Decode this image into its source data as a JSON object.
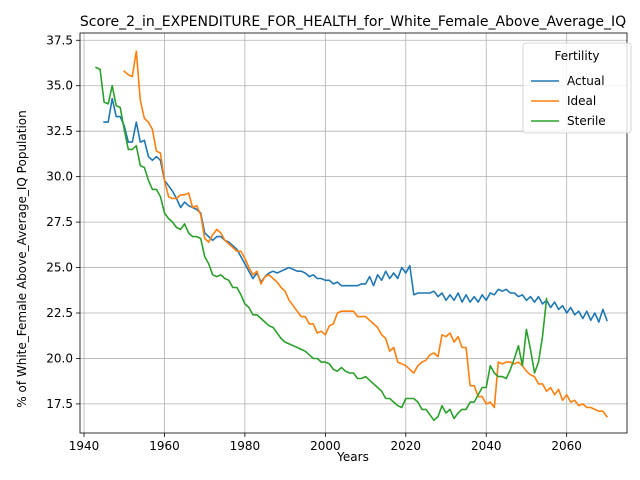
{
  "chart_data": {
    "type": "line",
    "title": "Score_2_in_EXPENDITURE_FOR_HEALTH_for_White_Female_Above_Average_IQ",
    "xlabel": "Years",
    "ylabel": "% of White_Female Above_Average_IQ Population",
    "xlim": [
      1939,
      2075
    ],
    "ylim": [
      15.9,
      37.9
    ],
    "grid": true,
    "xticks": [
      1940,
      1960,
      1980,
      2000,
      2020,
      2040,
      2060
    ],
    "yticks": [
      17.5,
      20.0,
      22.5,
      25.0,
      27.5,
      30.0,
      32.5,
      35.0,
      37.5
    ],
    "ytick_labels": [
      "17.5",
      "20.0",
      "22.5",
      "25.0",
      "27.5",
      "30.0",
      "32.5",
      "35.0",
      "37.5"
    ],
    "legend": {
      "title": "Fertility",
      "position": "top-right"
    },
    "series": [
      {
        "name": "Actual",
        "color": "#1f77b4",
        "x": [
          1945,
          1946,
          1947,
          1948,
          1949,
          1950,
          1951,
          1952,
          1953,
          1954,
          1955,
          1956,
          1957,
          1958,
          1959,
          1960,
          1961,
          1962,
          1963,
          1964,
          1965,
          1966,
          1967,
          1968,
          1969,
          1970,
          1971,
          1972,
          1973,
          1974,
          1975,
          1976,
          1977,
          1978,
          1979,
          1980,
          1981,
          1982,
          1983,
          1984,
          1985,
          1986,
          1987,
          1988,
          1989,
          1990,
          1991,
          1992,
          1993,
          1994,
          1995,
          1996,
          1997,
          1998,
          1999,
          2000,
          2001,
          2002,
          2003,
          2004,
          2005,
          2006,
          2007,
          2008,
          2009,
          2010,
          2011,
          2012,
          2013,
          2014,
          2015,
          2016,
          2017,
          2018,
          2019,
          2020,
          2021,
          2022,
          2023,
          2024,
          2025,
          2026,
          2027,
          2028,
          2029,
          2030,
          2031,
          2032,
          2033,
          2034,
          2035,
          2036,
          2037,
          2038,
          2039,
          2040,
          2041,
          2042,
          2043,
          2044,
          2045,
          2046,
          2047,
          2048,
          2049,
          2050,
          2051,
          2052,
          2053,
          2054,
          2055,
          2056,
          2057,
          2058,
          2059,
          2060,
          2061,
          2062,
          2063,
          2064,
          2065,
          2066,
          2067,
          2068,
          2069,
          2070
        ],
        "values": [
          33.0,
          33.0,
          34.3,
          33.3,
          33.3,
          32.8,
          31.9,
          31.9,
          33.0,
          31.9,
          32.0,
          31.1,
          30.9,
          31.1,
          30.9,
          29.8,
          29.5,
          29.2,
          28.8,
          28.3,
          28.6,
          28.4,
          28.3,
          28.2,
          28.0,
          26.9,
          26.7,
          26.5,
          26.7,
          26.7,
          26.5,
          26.4,
          26.2,
          26.0,
          25.6,
          25.2,
          24.8,
          24.4,
          24.7,
          24.2,
          24.5,
          24.7,
          24.8,
          24.7,
          24.8,
          24.9,
          25.0,
          24.9,
          24.8,
          24.8,
          24.7,
          24.5,
          24.6,
          24.4,
          24.4,
          24.3,
          24.3,
          24.1,
          24.2,
          24.0,
          24.0,
          24.0,
          24.0,
          24.0,
          24.1,
          24.1,
          24.5,
          24.0,
          24.6,
          24.3,
          24.8,
          24.4,
          24.7,
          24.4,
          25.0,
          24.7,
          25.1,
          23.5,
          23.6,
          23.6,
          23.6,
          23.6,
          23.7,
          23.4,
          23.6,
          23.2,
          23.5,
          23.2,
          23.6,
          23.1,
          23.5,
          23.1,
          23.4,
          23.1,
          23.5,
          23.2,
          23.6,
          23.5,
          23.8,
          23.7,
          23.8,
          23.6,
          23.6,
          23.4,
          23.5,
          23.2,
          23.4,
          23.1,
          23.4,
          23.0,
          23.2,
          22.8,
          23.1,
          22.7,
          22.9,
          22.5,
          22.8,
          22.4,
          22.6,
          22.2,
          22.6,
          22.1,
          22.5,
          22.0,
          22.7,
          22.1
        ]
      },
      {
        "name": "Ideal",
        "color": "#ff7f0e",
        "x": [
          1950,
          1951,
          1952,
          1953,
          1954,
          1955,
          1956,
          1957,
          1958,
          1959,
          1960,
          1961,
          1962,
          1963,
          1964,
          1965,
          1966,
          1967,
          1968,
          1969,
          1970,
          1971,
          1972,
          1973,
          1974,
          1975,
          1976,
          1977,
          1978,
          1979,
          1980,
          1981,
          1982,
          1983,
          1984,
          1985,
          1986,
          1987,
          1988,
          1989,
          1990,
          1991,
          1992,
          1993,
          1994,
          1995,
          1996,
          1997,
          1998,
          1999,
          2000,
          2001,
          2002,
          2003,
          2004,
          2005,
          2006,
          2007,
          2008,
          2009,
          2010,
          2011,
          2012,
          2013,
          2014,
          2015,
          2016,
          2017,
          2018,
          2019,
          2020,
          2021,
          2022,
          2023,
          2024,
          2025,
          2026,
          2027,
          2028,
          2029,
          2030,
          2031,
          2032,
          2033,
          2034,
          2035,
          2036,
          2037,
          2038,
          2039,
          2040,
          2041,
          2042,
          2043,
          2044,
          2045,
          2046,
          2047,
          2048,
          2049,
          2050,
          2051,
          2052,
          2053,
          2054,
          2055,
          2056,
          2057,
          2058,
          2059,
          2060,
          2061,
          2062,
          2063,
          2064,
          2065,
          2066,
          2067,
          2068,
          2069,
          2070
        ],
        "values": [
          35.8,
          35.6,
          35.5,
          36.9,
          34.2,
          33.2,
          33.0,
          32.6,
          31.4,
          31.3,
          29.8,
          28.9,
          28.8,
          28.8,
          29.0,
          29.0,
          29.1,
          28.3,
          28.4,
          27.9,
          26.6,
          26.4,
          26.8,
          27.1,
          26.9,
          26.5,
          26.3,
          26.1,
          25.9,
          25.9,
          25.5,
          25.0,
          24.6,
          24.8,
          24.1,
          24.5,
          24.6,
          24.4,
          24.2,
          23.9,
          23.7,
          23.2,
          22.9,
          22.6,
          22.3,
          22.3,
          21.9,
          21.9,
          21.4,
          21.5,
          21.3,
          21.8,
          21.9,
          22.5,
          22.6,
          22.6,
          22.6,
          22.6,
          22.3,
          22.3,
          22.3,
          22.1,
          21.9,
          21.7,
          21.3,
          21.1,
          20.4,
          20.6,
          19.8,
          19.7,
          19.6,
          19.4,
          19.2,
          19.6,
          19.8,
          19.9,
          20.2,
          20.3,
          20.1,
          21.3,
          21.2,
          21.4,
          20.9,
          21.2,
          20.6,
          20.6,
          18.5,
          18.5,
          17.9,
          17.9,
          17.5,
          17.6,
          17.3,
          19.8,
          19.7,
          19.8,
          19.8,
          19.7,
          19.8,
          19.6,
          19.3,
          19.1,
          19.0,
          18.6,
          18.6,
          18.2,
          18.4,
          18.0,
          18.3,
          17.7,
          18.0,
          17.6,
          17.7,
          17.4,
          17.5,
          17.3,
          17.3,
          17.2,
          17.1,
          17.1,
          16.8
        ]
      },
      {
        "name": "Sterile",
        "color": "#2ca02c",
        "x": [
          1943,
          1944,
          1945,
          1946,
          1947,
          1948,
          1949,
          1950,
          1951,
          1952,
          1953,
          1954,
          1955,
          1956,
          1957,
          1958,
          1959,
          1960,
          1961,
          1962,
          1963,
          1964,
          1965,
          1966,
          1967,
          1968,
          1969,
          1970,
          1971,
          1972,
          1973,
          1974,
          1975,
          1976,
          1977,
          1978,
          1979,
          1980,
          1981,
          1982,
          1983,
          1984,
          1985,
          1986,
          1987,
          1988,
          1989,
          1990,
          1991,
          1992,
          1993,
          1994,
          1995,
          1996,
          1997,
          1998,
          1999,
          2000,
          2001,
          2002,
          2003,
          2004,
          2005,
          2006,
          2007,
          2008,
          2009,
          2010,
          2011,
          2012,
          2013,
          2014,
          2015,
          2016,
          2017,
          2018,
          2019,
          2020,
          2021,
          2022,
          2023,
          2024,
          2025,
          2026,
          2027,
          2028,
          2029,
          2030,
          2031,
          2032,
          2033,
          2034,
          2035,
          2036,
          2037,
          2038,
          2039,
          2040,
          2041,
          2042,
          2043,
          2044,
          2045,
          2046,
          2047,
          2048,
          2049,
          2050,
          2051,
          2052,
          2053,
          2054,
          2055
        ],
        "values": [
          36.0,
          35.9,
          34.1,
          34.0,
          35.0,
          33.9,
          33.8,
          32.6,
          31.5,
          31.5,
          31.7,
          30.6,
          30.5,
          29.8,
          29.3,
          29.3,
          28.9,
          28.0,
          27.7,
          27.5,
          27.2,
          27.1,
          27.4,
          26.9,
          26.7,
          26.7,
          26.6,
          25.6,
          25.2,
          24.6,
          24.5,
          24.6,
          24.4,
          24.3,
          23.9,
          23.9,
          23.5,
          23.0,
          22.8,
          22.4,
          22.4,
          22.2,
          22.0,
          21.8,
          21.7,
          21.4,
          21.1,
          20.9,
          20.8,
          20.7,
          20.6,
          20.5,
          20.4,
          20.2,
          20.0,
          20.0,
          19.8,
          19.8,
          19.7,
          19.4,
          19.3,
          19.5,
          19.3,
          19.2,
          19.2,
          18.9,
          18.9,
          19.0,
          18.8,
          18.6,
          18.4,
          18.2,
          17.8,
          17.8,
          17.6,
          17.4,
          17.3,
          17.8,
          17.8,
          17.8,
          17.6,
          17.2,
          17.2,
          16.9,
          16.6,
          16.8,
          17.4,
          17.0,
          17.2,
          16.7,
          17.0,
          17.2,
          17.2,
          17.6,
          17.6,
          18.0,
          18.4,
          18.4,
          19.6,
          19.2,
          19.0,
          19.0,
          18.9,
          19.4,
          20.0,
          20.7,
          19.6,
          21.6,
          20.5,
          19.2,
          19.8,
          21.2,
          23.3
        ]
      }
    ]
  }
}
